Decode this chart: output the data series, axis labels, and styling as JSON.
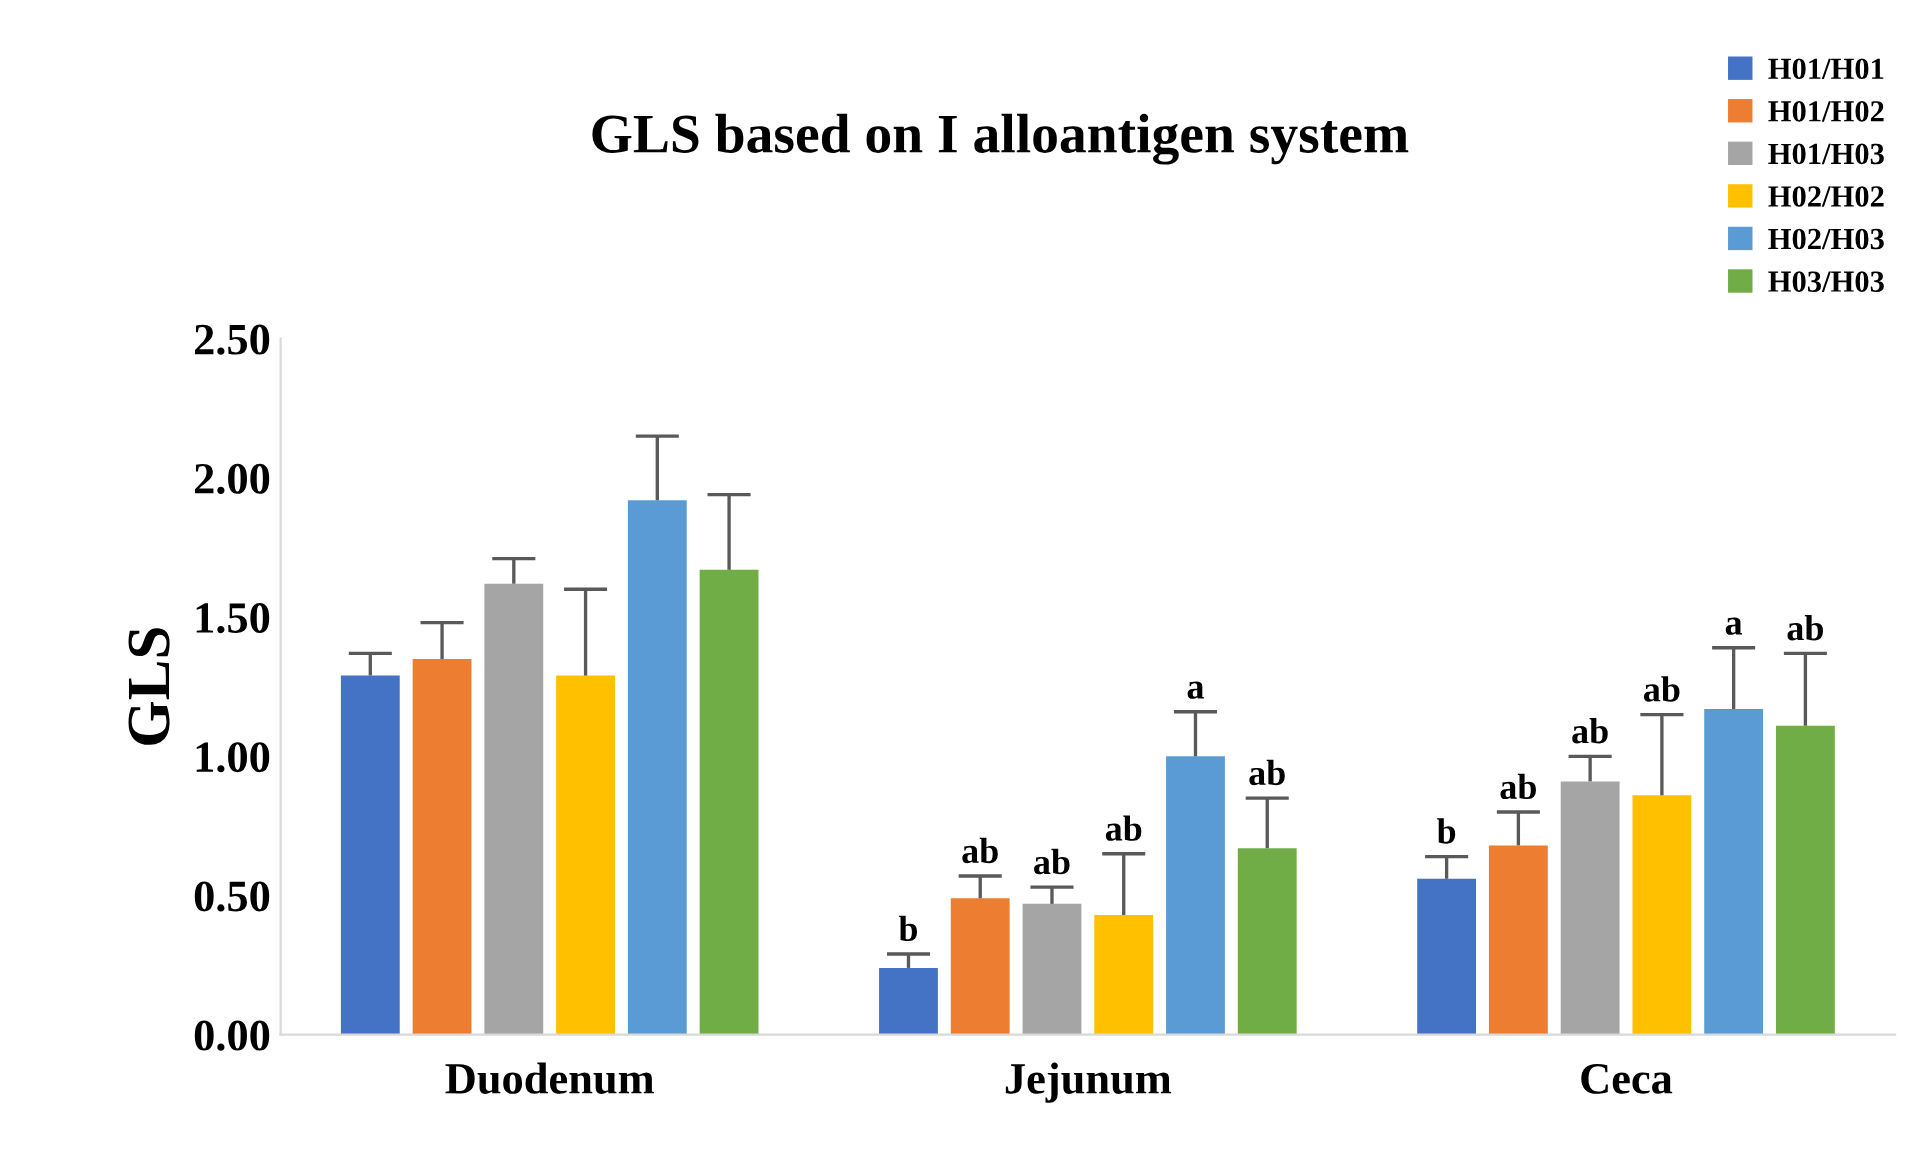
{
  "chart_data": {
    "type": "bar",
    "title": "GLS based on I alloantigen system",
    "ylabel": "GLS",
    "categories": [
      "Duodenum",
      "Jejunum",
      "Ceca"
    ],
    "series": [
      {
        "name": "H01/H01",
        "color": "#4472c4",
        "values": [
          1.29,
          0.24,
          0.56
        ],
        "errors": [
          [
            1.29,
            1.37
          ],
          [
            0.24,
            0.29
          ],
          [
            0.56,
            0.64
          ]
        ],
        "value_labels": [
          null,
          "b",
          "b"
        ]
      },
      {
        "name": "H01/H02",
        "color": "#ed7d31",
        "values": [
          1.35,
          0.49,
          0.68
        ],
        "errors": [
          [
            1.35,
            1.48
          ],
          [
            0.49,
            0.57
          ],
          [
            0.68,
            0.8
          ]
        ],
        "value_labels": [
          null,
          "ab",
          "ab"
        ]
      },
      {
        "name": "H01/H03",
        "color": "#a5a5a5",
        "values": [
          1.62,
          0.47,
          0.91
        ],
        "errors": [
          [
            1.62,
            1.71
          ],
          [
            0.47,
            0.53
          ],
          [
            0.91,
            1.0
          ]
        ],
        "value_labels": [
          null,
          "ab",
          "ab"
        ]
      },
      {
        "name": "H02/H02",
        "color": "#ffc000",
        "values": [
          1.29,
          0.43,
          0.86
        ],
        "errors": [
          [
            1.29,
            1.6
          ],
          [
            0.43,
            0.65
          ],
          [
            0.86,
            1.15
          ]
        ],
        "value_labels": [
          null,
          "ab",
          "ab"
        ]
      },
      {
        "name": "H02/H03",
        "color": "#5b9bd5",
        "values": [
          1.92,
          1.0,
          1.17
        ],
        "errors": [
          [
            1.92,
            2.15
          ],
          [
            1.0,
            1.16
          ],
          [
            1.17,
            1.39
          ]
        ],
        "value_labels": [
          null,
          "a",
          "a"
        ]
      },
      {
        "name": "H03/H03",
        "color": "#70ad47",
        "values": [
          1.67,
          0.67,
          1.11
        ],
        "errors": [
          [
            1.67,
            1.94
          ],
          [
            0.67,
            0.85
          ],
          [
            1.11,
            1.37
          ]
        ],
        "value_labels": [
          null,
          "ab",
          "ab"
        ]
      }
    ],
    "ylim": [
      0,
      2.5
    ],
    "yticks": [
      {
        "value": 0,
        "label": "0.00"
      },
      {
        "value": 0.5,
        "label": "0.50"
      },
      {
        "value": 1,
        "label": "1.00"
      },
      {
        "value": 1.5,
        "label": "1.50"
      },
      {
        "value": 2,
        "label": "2.00"
      },
      {
        "value": 2.5,
        "label": "2.50"
      }
    ],
    "grid": false,
    "legend": "top right"
  }
}
